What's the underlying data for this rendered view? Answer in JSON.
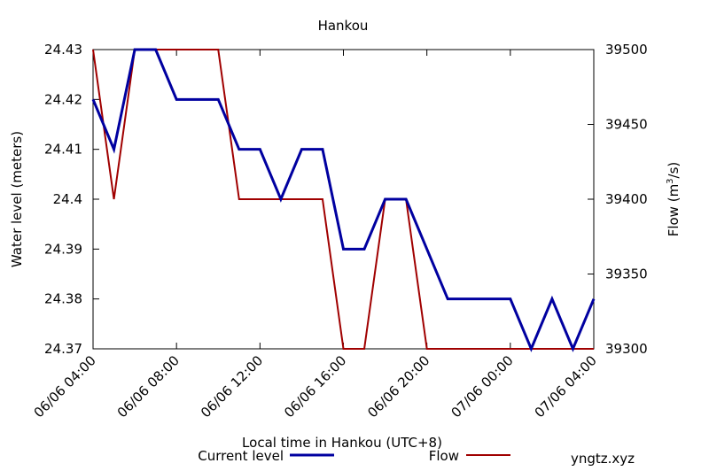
{
  "chart_data": {
    "type": "line",
    "title": "Hankou",
    "xlabel": "Local time in Hankou (UTC+8)",
    "ylabel_left": "Water level (meters)",
    "ylabel_right_parts": {
      "prefix": "Flow (m",
      "sup": "3",
      "suffix": "/s)"
    },
    "x_start": "06/06 04:00",
    "x_end": "07/06 04:00",
    "x_step_hours": 1,
    "x_ticks": [
      "06/06 04:00",
      "06/06 08:00",
      "06/06 12:00",
      "06/06 16:00",
      "06/06 20:00",
      "07/06 00:00",
      "07/06 04:00"
    ],
    "y_left": {
      "lim": [
        24.37,
        24.43
      ],
      "ticks": [
        "24.37",
        "24.38",
        "24.39",
        "24.4",
        "24.41",
        "24.42",
        "24.43"
      ]
    },
    "y_right": {
      "lim": [
        39300,
        39500
      ],
      "ticks": [
        "39300",
        "39350",
        "39400",
        "39450",
        "39500"
      ]
    },
    "grid": false,
    "legend_position": "bottom",
    "series": [
      {
        "name": "Current level",
        "axis": "left",
        "color": "#0000a0",
        "values": [
          24.42,
          24.41,
          24.43,
          24.43,
          24.42,
          24.42,
          24.42,
          24.41,
          24.41,
          24.4,
          24.41,
          24.41,
          24.39,
          24.39,
          24.4,
          24.4,
          24.39,
          24.38,
          24.38,
          24.38,
          24.38,
          24.37,
          24.38,
          24.37,
          24.38
        ]
      },
      {
        "name": "Flow",
        "axis": "right",
        "color": "#a00000",
        "values": [
          39500,
          39400,
          39500,
          39500,
          39500,
          39500,
          39500,
          39400,
          39400,
          39400,
          39400,
          39400,
          39300,
          39300,
          39400,
          39400,
          39300,
          39300,
          39300,
          39300,
          39300,
          39300,
          39300,
          39300,
          39300
        ]
      }
    ]
  },
  "watermark": {
    "text": "yngtz.xyz",
    "color": "#a00000"
  }
}
